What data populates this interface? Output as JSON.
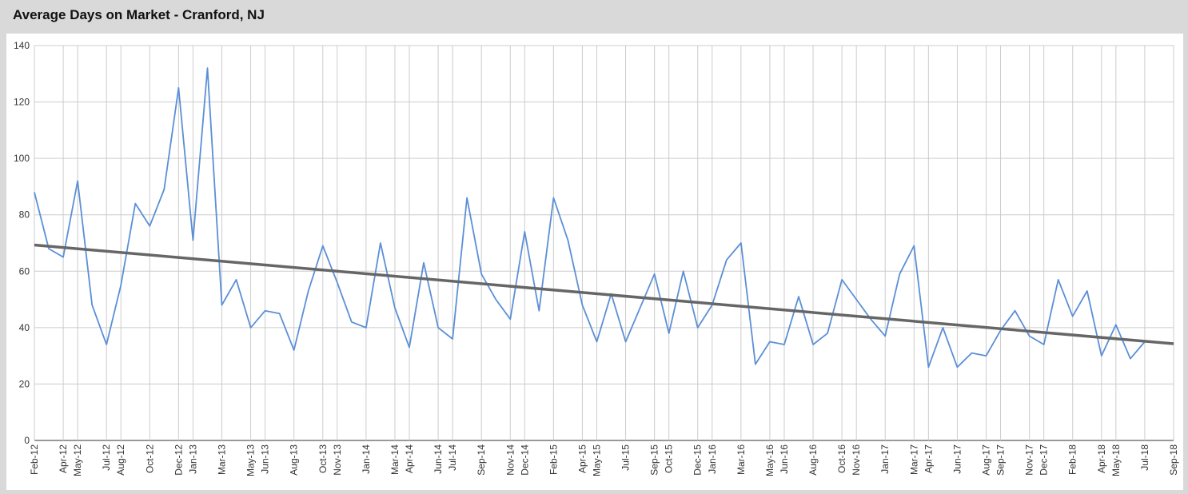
{
  "chart_data": {
    "type": "line",
    "title": "Average Days on Market - Cranford, NJ",
    "x": [
      "Feb-12",
      "Mar-12",
      "Apr-12",
      "May-12",
      "Jun-12",
      "Jul-12",
      "Aug-12",
      "Sep-12",
      "Oct-12",
      "Nov-12",
      "Dec-12",
      "Jan-13",
      "Feb-13",
      "Mar-13",
      "Apr-13",
      "May-13",
      "Jun-13",
      "Jul-13",
      "Aug-13",
      "Sep-13",
      "Oct-13",
      "Nov-13",
      "Dec-13",
      "Jan-14",
      "Feb-14",
      "Mar-14",
      "Apr-14",
      "May-14",
      "Jun-14",
      "Jul-14",
      "Aug-14",
      "Sep-14",
      "Oct-14",
      "Nov-14",
      "Dec-14",
      "Jan-15",
      "Feb-15",
      "Mar-15",
      "Apr-15",
      "May-15",
      "Jun-15",
      "Jul-15",
      "Aug-15",
      "Sep-15",
      "Oct-15",
      "Nov-15",
      "Dec-15",
      "Jan-16",
      "Feb-16",
      "Mar-16",
      "Apr-16",
      "May-16",
      "Jun-16",
      "Jul-16",
      "Aug-16",
      "Sep-16",
      "Oct-16",
      "Nov-16",
      "Dec-16",
      "Jan-17",
      "Feb-17",
      "Mar-17",
      "Apr-17",
      "May-17",
      "Jun-17",
      "Jul-17",
      "Aug-17",
      "Sep-17",
      "Oct-17",
      "Nov-17",
      "Dec-17",
      "Jan-18",
      "Feb-18",
      "Mar-18",
      "Apr-18",
      "May-18",
      "Jun-18",
      "Jul-18"
    ],
    "series": [
      {
        "color": "#5b8fd6",
        "values": [
          88,
          68,
          65,
          92,
          48,
          34,
          55,
          84,
          76,
          89,
          125,
          71,
          132,
          48,
          57,
          40,
          46,
          45,
          32,
          53,
          69,
          56,
          42,
          40,
          70,
          47,
          33,
          63,
          40,
          36,
          86,
          59,
          50,
          43,
          74,
          46,
          86,
          71,
          48,
          35,
          52,
          35,
          47,
          59,
          38,
          60,
          40,
          48,
          64,
          70,
          27,
          35,
          34,
          51,
          34,
          38,
          57,
          50,
          43,
          37,
          59,
          69,
          26,
          40,
          26,
          31,
          30,
          39,
          46,
          37,
          34,
          57,
          44,
          53,
          30,
          41,
          29,
          35
        ]
      },
      {
        "color": "#666666",
        "x": [
          "Feb-12",
          "Sep-18"
        ],
        "values": [
          69.3,
          34.3
        ]
      }
    ],
    "xlim": [
      "Feb-12",
      "Sep-18"
    ],
    "xticks": [
      "Feb-12",
      "Apr-12",
      "May-12",
      "Jul-12",
      "Aug-12",
      "Oct-12",
      "Dec-12",
      "Jan-13",
      "Mar-13",
      "May-13",
      "Jun-13",
      "Aug-13",
      "Oct-13",
      "Nov-13",
      "Jan-14",
      "Mar-14",
      "Apr-14",
      "Jun-14",
      "Jul-14",
      "Sep-14",
      "Nov-14",
      "Dec-14",
      "Feb-15",
      "Apr-15",
      "May-15",
      "Jul-15",
      "Sep-15",
      "Oct-15",
      "Dec-15",
      "Jan-16",
      "Mar-16",
      "May-16",
      "Jun-16",
      "Aug-16",
      "Oct-16",
      "Nov-16",
      "Jan-17",
      "Mar-17",
      "Apr-17",
      "Jun-17",
      "Aug-17",
      "Sep-17",
      "Nov-17",
      "Dec-17",
      "Feb-18",
      "Apr-18",
      "May-18",
      "Jul-18",
      "Sep-18"
    ],
    "ylim": [
      0,
      140
    ],
    "yticks": [
      0,
      20,
      40,
      60,
      80,
      100,
      120,
      140
    ],
    "grid": true
  }
}
